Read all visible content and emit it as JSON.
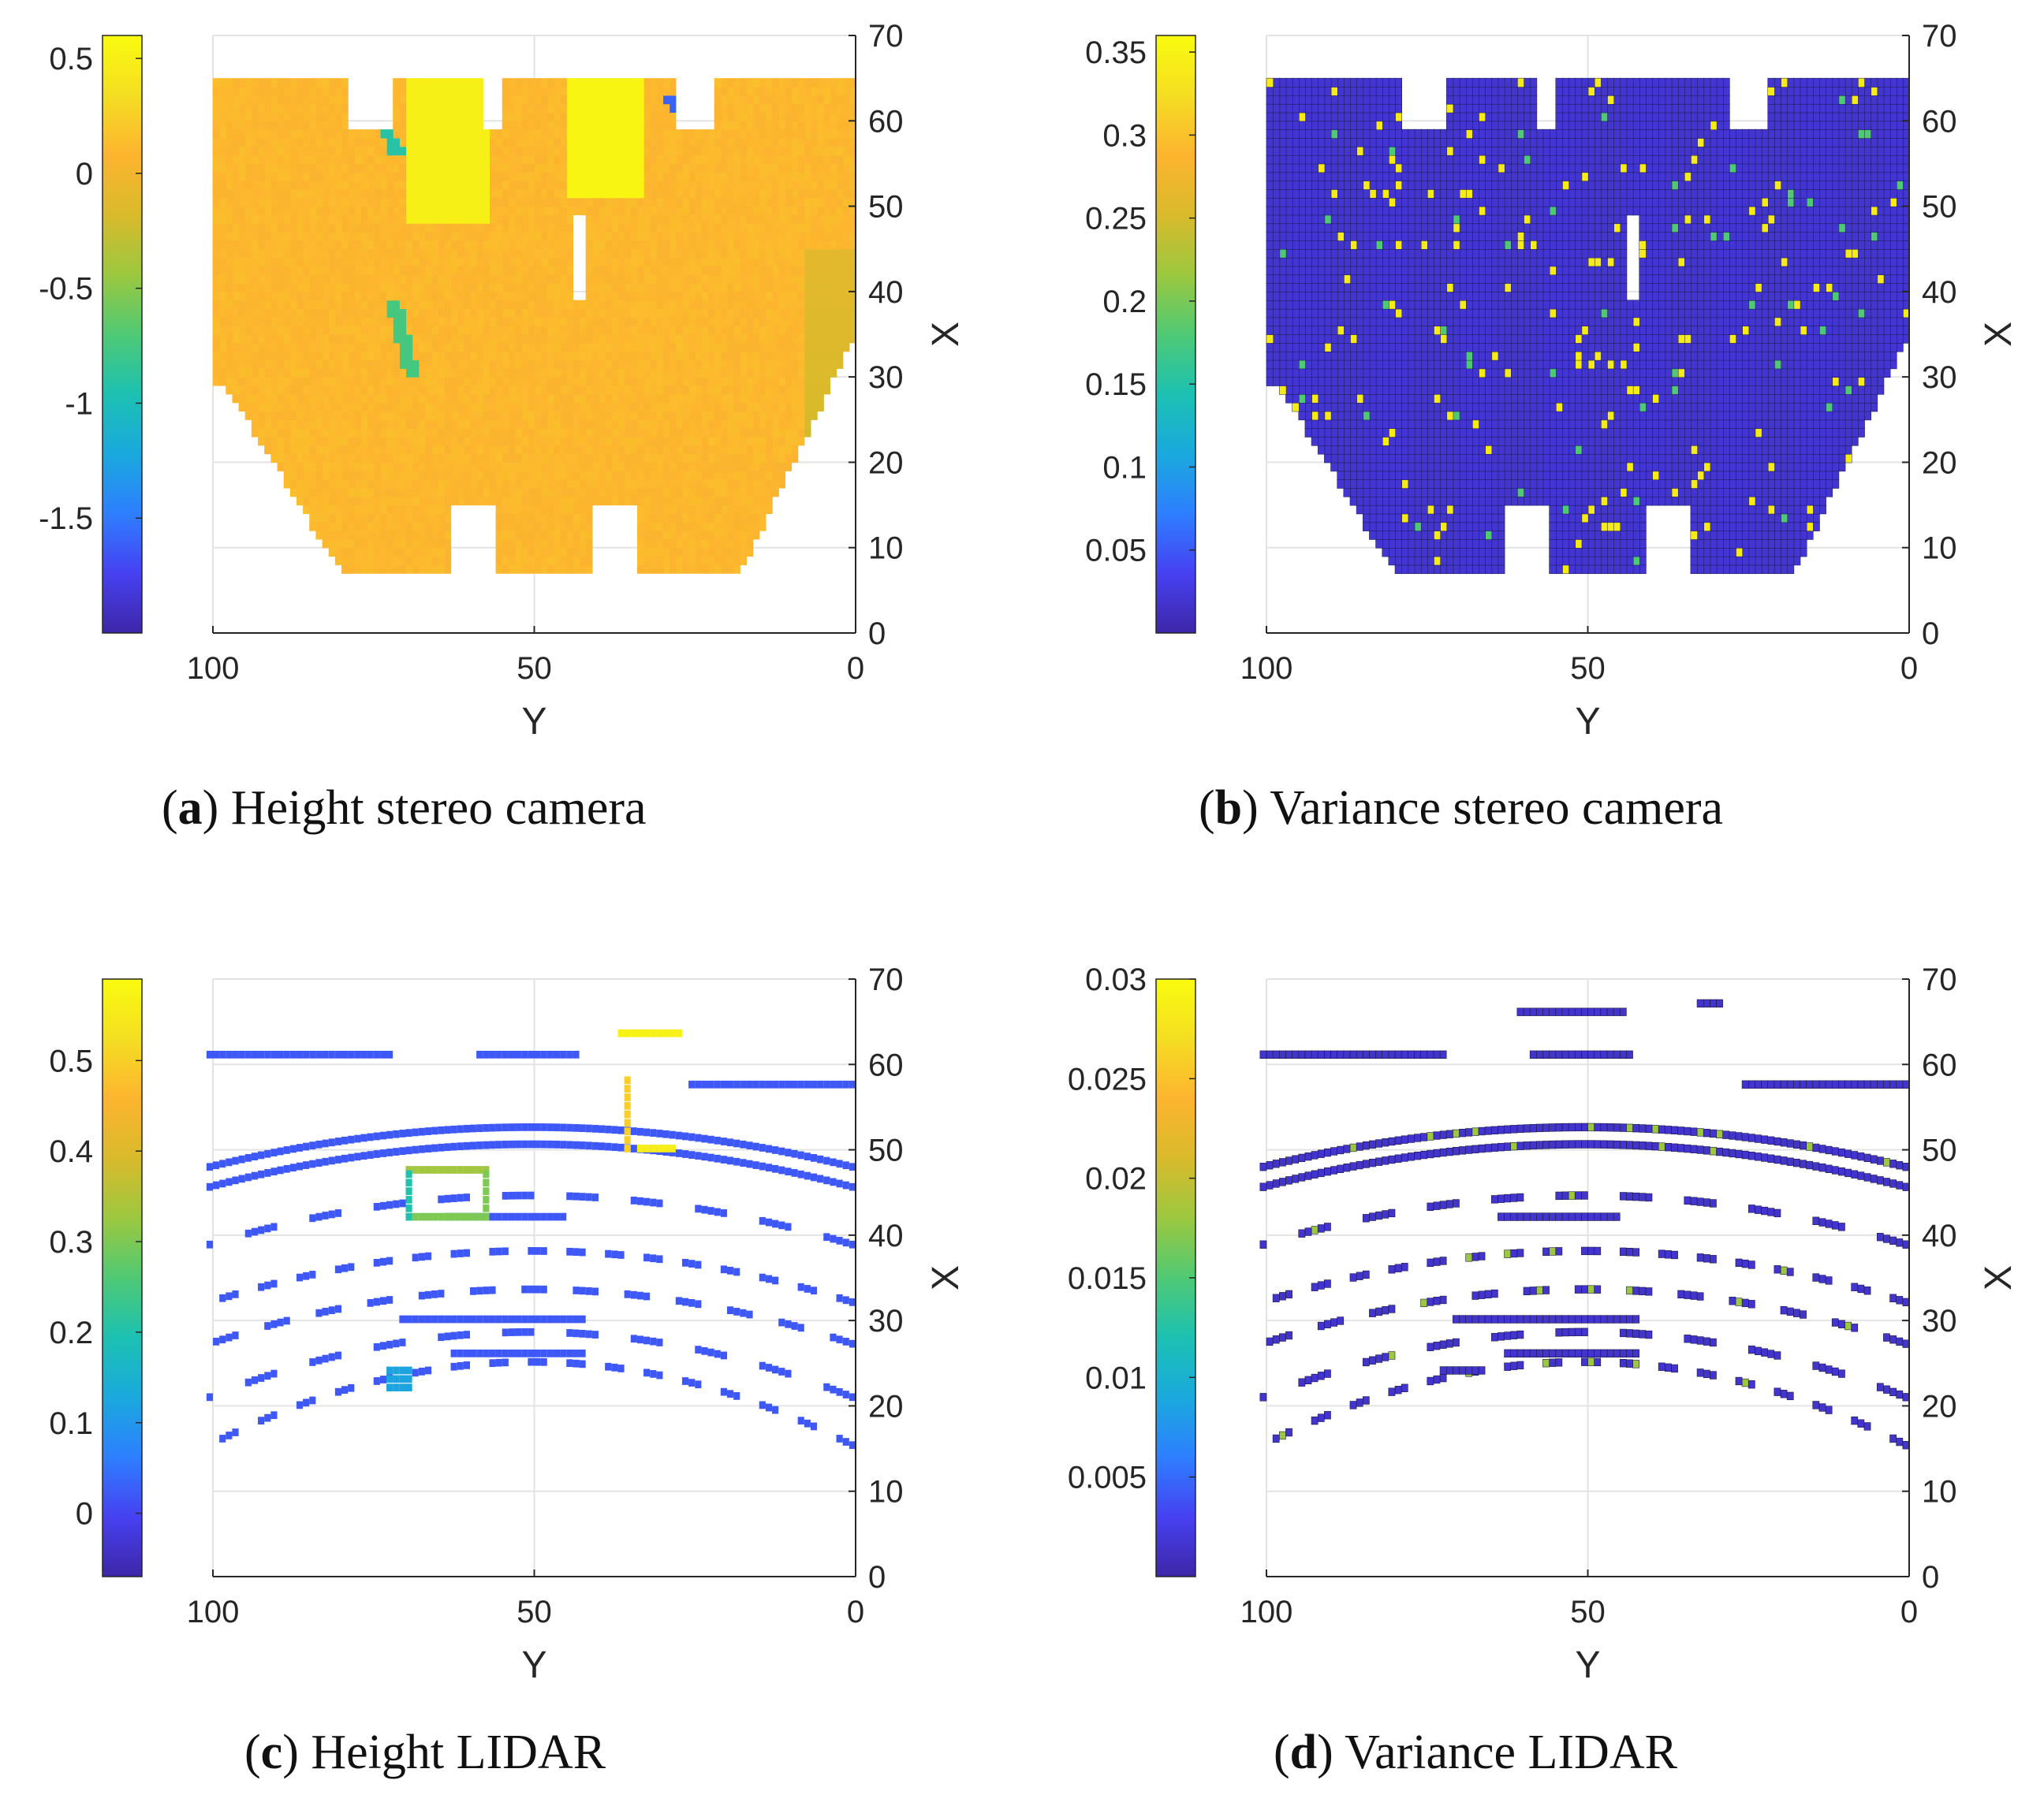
{
  "colors": {
    "colormap": [
      "#3e26a8",
      "#4641f1",
      "#2e7fff",
      "#1aa9dd",
      "#1cc1b2",
      "#4fc974",
      "#9cc83f",
      "#d9ba2b",
      "#fdb42f",
      "#f4de22",
      "#f9fb0e"
    ],
    "grid": "#e3e3e3",
    "axis": "#262626"
  },
  "chart_data": [
    {
      "id": "a",
      "type": "heatmap",
      "caption_letter": "a",
      "caption_text": "Height stereo camera",
      "xlabel": "Y",
      "ylabel": "X",
      "xlim": [
        100,
        0
      ],
      "ylim": [
        0,
        70
      ],
      "xticks": [
        100,
        50,
        0
      ],
      "yticks": [
        0,
        10,
        20,
        30,
        40,
        50,
        60,
        70
      ],
      "colorbar": {
        "min": -2.0,
        "max": 0.6,
        "ticks": [
          "0.5",
          "0",
          "-0.5",
          "-1",
          "-1.5"
        ],
        "tick_values": [
          0.5,
          0,
          -0.5,
          -1,
          -1.5
        ]
      },
      "region": "stereo",
      "base_value": 0.1,
      "features": [
        {
          "kind": "patch",
          "y": [
            33,
            45
          ],
          "x": [
            51,
            66
          ],
          "value": 0.55
        },
        {
          "kind": "patch",
          "y": [
            57,
            70
          ],
          "x": [
            48,
            66
          ],
          "value": 0.5
        },
        {
          "kind": "streak",
          "y0": 72,
          "x0": 39,
          "y1": 69,
          "x1": 30,
          "value": -0.75
        },
        {
          "kind": "streak",
          "y0": 74,
          "x0": 60,
          "y1": 71,
          "x1": 56,
          "value": -0.9
        },
        {
          "kind": "streak",
          "y0": 29,
          "x0": 63,
          "y1": 25,
          "x1": 59,
          "value": -1.6
        }
      ]
    },
    {
      "id": "b",
      "type": "heatmap",
      "caption_letter": "b",
      "caption_text": "Variance stereo camera",
      "xlabel": "Y",
      "ylabel": "X",
      "xlim": [
        100,
        0
      ],
      "ylim": [
        0,
        70
      ],
      "xticks": [
        100,
        50,
        0
      ],
      "yticks": [
        0,
        10,
        20,
        30,
        40,
        50,
        60,
        70
      ],
      "colorbar": {
        "min": 0.0,
        "max": 0.36,
        "ticks": [
          "0.35",
          "0.3",
          "0.25",
          "0.2",
          "0.15",
          "0.1",
          "0.05"
        ],
        "tick_values": [
          0.35,
          0.3,
          0.25,
          0.2,
          0.15,
          0.1,
          0.05
        ]
      },
      "region": "stereo",
      "base_value": 0.02
    },
    {
      "id": "c",
      "type": "heatmap",
      "caption_letter": "c",
      "caption_text": "Height LIDAR",
      "xlabel": "Y",
      "ylabel": "X",
      "xlim": [
        100,
        0
      ],
      "ylim": [
        0,
        70
      ],
      "xticks": [
        100,
        50,
        0
      ],
      "yticks": [
        0,
        10,
        20,
        30,
        40,
        50,
        60,
        70
      ],
      "colorbar": {
        "min": -0.07,
        "max": 0.59,
        "ticks": [
          "0.5",
          "0.4",
          "0.3",
          "0.2",
          "0.1",
          "0"
        ],
        "tick_values": [
          0.5,
          0.4,
          0.3,
          0.2,
          0.1,
          0
        ]
      },
      "region": "lidar",
      "base_value": 0.0
    },
    {
      "id": "d",
      "type": "heatmap",
      "caption_letter": "d",
      "caption_text": "Variance LIDAR",
      "xlabel": "Y",
      "ylabel": "X",
      "xlim": [
        100,
        0
      ],
      "ylim": [
        0,
        70
      ],
      "xticks": [
        100,
        50,
        0
      ],
      "yticks": [
        0,
        10,
        20,
        30,
        40,
        50,
        60,
        70
      ],
      "colorbar": {
        "min": 0.0,
        "max": 0.03,
        "ticks": [
          "0.03",
          "0.025",
          "0.02",
          "0.015",
          "0.01",
          "0.005"
        ],
        "tick_values": [
          0.03,
          0.025,
          0.02,
          0.015,
          0.01,
          0.005
        ]
      },
      "region": "lidar",
      "base_value": 0.0015
    }
  ]
}
